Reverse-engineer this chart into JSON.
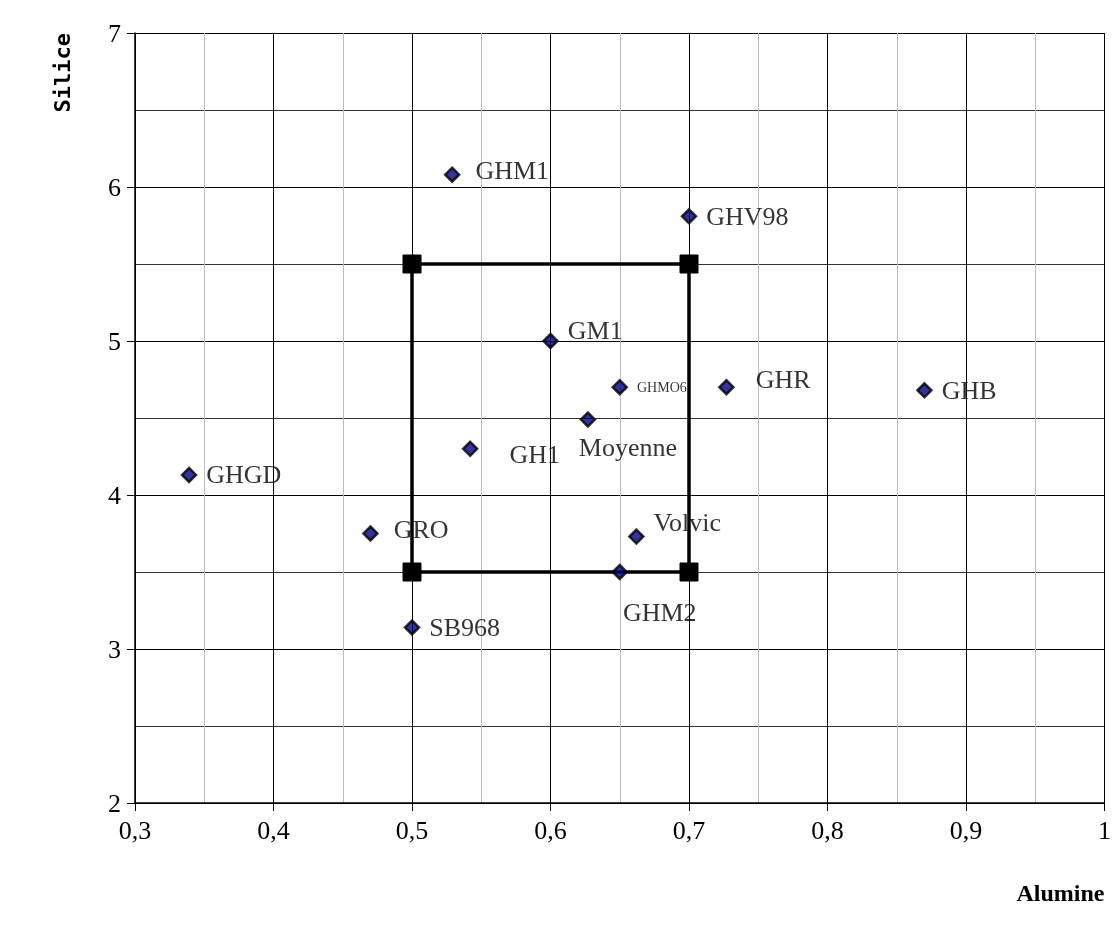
{
  "chart_data": {
    "type": "scatter",
    "xlabel": "Alumine",
    "ylabel": "Silice",
    "xlim": [
      0.3,
      1
    ],
    "xticks": [
      {
        "value": 0.3,
        "label": "0,3"
      },
      {
        "value": 0.4,
        "label": "0,4"
      },
      {
        "value": 0.5,
        "label": "0,5"
      },
      {
        "value": 0.6,
        "label": "0,6"
      },
      {
        "value": 0.7,
        "label": "0,7"
      },
      {
        "value": 0.8,
        "label": "0,8"
      },
      {
        "value": 0.9,
        "label": "0,9"
      },
      1
    ],
    "ylim": [
      2,
      7
    ],
    "yticks": [
      2,
      3,
      4,
      5,
      6,
      7
    ],
    "grid": true,
    "series": [
      {
        "marker": "diamond",
        "color": "#000080",
        "x": [
          0.529,
          0.7,
          0.6,
          0.65,
          0.727,
          0.87,
          0.627,
          0.542,
          0.339,
          0.47,
          0.662,
          0.65,
          0.5
        ],
        "values": [
          6.08,
          5.81,
          5.0,
          4.7,
          4.7,
          4.68,
          4.49,
          4.3,
          4.13,
          3.75,
          3.73,
          3.5,
          3.14
        ],
        "value_labels": [
          "GHM1",
          "GHV98",
          "GM1",
          "GHMO6",
          "GHR",
          "GHB",
          "Moyenne",
          "GH1",
          "GHGD",
          "GRO",
          "Volvic",
          "GHM2",
          "SB968"
        ]
      },
      {
        "type": "line",
        "marker": "square",
        "line_style": "solid",
        "color": "#000000",
        "x": [
          0.5,
          0.5,
          0.7,
          0.7
        ],
        "values": [
          3.5,
          5.5,
          5.5,
          3.5
        ]
      },
      {
        "type": "line",
        "marker": "none",
        "line_style": "solid",
        "color": "#000000",
        "x": [
          0.5,
          0.7
        ],
        "values": [
          3.5,
          3.5
        ]
      }
    ]
  }
}
